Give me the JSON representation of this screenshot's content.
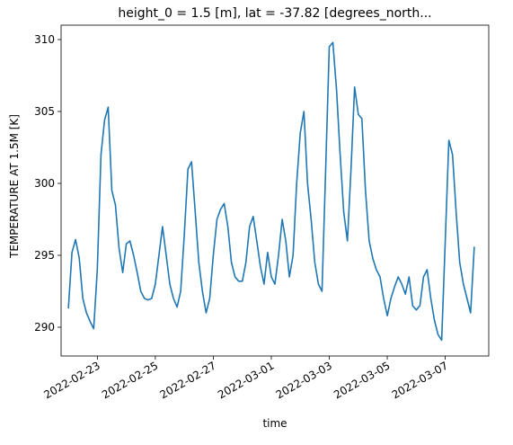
{
  "chart_data": {
    "type": "line",
    "title": "height_0 = 1.5 [m], lat = -37.82 [degrees_north...",
    "xlabel": "time",
    "ylabel": "TEMPERATURE AT 1.5M [K]",
    "xlim": [
      "2022-02-21T18:00",
      "2022-03-08T12:00"
    ],
    "ylim": [
      288,
      311
    ],
    "x_ticks": [
      "2022-02-23",
      "2022-02-25",
      "2022-02-27",
      "2022-03-01",
      "2022-03-03",
      "2022-03-05",
      "2022-03-07"
    ],
    "y_ticks": [
      290,
      295,
      300,
      305,
      310
    ],
    "line_color": "#1f77b4",
    "grid": false,
    "series": [
      {
        "x": [
          "2022-02-22T00:00",
          "2022-02-22T03:00",
          "2022-02-22T06:00",
          "2022-02-22T09:00",
          "2022-02-22T12:00",
          "2022-02-22T15:00",
          "2022-02-22T18:00",
          "2022-02-22T21:00",
          "2022-02-23T00:00",
          "2022-02-23T03:00",
          "2022-02-23T06:00",
          "2022-02-23T09:00",
          "2022-02-23T12:00",
          "2022-02-23T15:00",
          "2022-02-23T18:00",
          "2022-02-23T21:00",
          "2022-02-24T00:00",
          "2022-02-24T03:00",
          "2022-02-24T06:00",
          "2022-02-24T09:00",
          "2022-02-24T12:00",
          "2022-02-24T15:00",
          "2022-02-24T18:00",
          "2022-02-24T21:00",
          "2022-02-25T00:00",
          "2022-02-25T03:00",
          "2022-02-25T06:00",
          "2022-02-25T09:00",
          "2022-02-25T12:00",
          "2022-02-25T15:00",
          "2022-02-25T18:00",
          "2022-02-25T21:00",
          "2022-02-26T00:00",
          "2022-02-26T03:00",
          "2022-02-26T06:00",
          "2022-02-26T09:00",
          "2022-02-26T12:00",
          "2022-02-26T15:00",
          "2022-02-26T18:00",
          "2022-02-26T21:00",
          "2022-02-27T00:00",
          "2022-02-27T03:00",
          "2022-02-27T06:00",
          "2022-02-27T09:00",
          "2022-02-27T12:00",
          "2022-02-27T15:00",
          "2022-02-27T18:00",
          "2022-02-27T21:00",
          "2022-02-28T00:00",
          "2022-02-28T03:00",
          "2022-02-28T06:00",
          "2022-02-28T09:00",
          "2022-02-28T12:00",
          "2022-02-28T15:00",
          "2022-02-28T18:00",
          "2022-02-28T21:00",
          "2022-03-01T00:00",
          "2022-03-01T03:00",
          "2022-03-01T06:00",
          "2022-03-01T09:00",
          "2022-03-01T12:00",
          "2022-03-01T15:00",
          "2022-03-01T18:00",
          "2022-03-01T21:00",
          "2022-03-02T00:00",
          "2022-03-02T03:00",
          "2022-03-02T06:00",
          "2022-03-02T09:00",
          "2022-03-02T12:00",
          "2022-03-02T15:00",
          "2022-03-02T18:00",
          "2022-03-02T21:00",
          "2022-03-03T00:00",
          "2022-03-03T03:00",
          "2022-03-03T06:00",
          "2022-03-03T09:00",
          "2022-03-03T12:00",
          "2022-03-03T15:00",
          "2022-03-03T18:00",
          "2022-03-03T21:00",
          "2022-03-04T00:00",
          "2022-03-04T03:00",
          "2022-03-04T06:00",
          "2022-03-04T09:00",
          "2022-03-04T12:00",
          "2022-03-04T15:00",
          "2022-03-04T18:00",
          "2022-03-04T21:00",
          "2022-03-05T00:00",
          "2022-03-05T03:00",
          "2022-03-05T06:00",
          "2022-03-05T09:00",
          "2022-03-05T12:00",
          "2022-03-05T15:00",
          "2022-03-05T18:00",
          "2022-03-05T21:00",
          "2022-03-06T00:00",
          "2022-03-06T03:00",
          "2022-03-06T06:00",
          "2022-03-06T09:00",
          "2022-03-06T12:00",
          "2022-03-06T15:00",
          "2022-03-06T18:00",
          "2022-03-06T21:00",
          "2022-03-07T00:00",
          "2022-03-07T03:00",
          "2022-03-07T06:00",
          "2022-03-07T09:00",
          "2022-03-07T12:00",
          "2022-03-07T15:00",
          "2022-03-07T18:00",
          "2022-03-07T21:00",
          "2022-03-08T00:00"
        ],
        "values": [
          291.3,
          295.2,
          296.1,
          294.8,
          292.0,
          291.0,
          290.4,
          289.9,
          294.0,
          302.0,
          304.4,
          305.3,
          299.5,
          298.5,
          295.5,
          293.8,
          295.8,
          296.0,
          295.0,
          293.8,
          292.5,
          292.0,
          291.9,
          292.0,
          293.0,
          295.0,
          297.0,
          295.0,
          293.0,
          292.0,
          291.4,
          292.5,
          296.5,
          301.0,
          301.5,
          298.0,
          294.5,
          292.5,
          291.0,
          292.0,
          295.0,
          297.5,
          298.2,
          298.6,
          297.0,
          294.5,
          293.5,
          293.2,
          293.2,
          294.5,
          297.0,
          297.7,
          296.0,
          294.2,
          293.0,
          295.2,
          293.5,
          293.0,
          295.0,
          297.5,
          296.0,
          293.5,
          295.0,
          300.0,
          303.5,
          305.0,
          300.0,
          297.5,
          294.5,
          293.0,
          292.5,
          301.0,
          309.5,
          309.8,
          306.5,
          302.0,
          298.0,
          296.0,
          301.0,
          306.7,
          304.8,
          304.5,
          299.5,
          296.0,
          294.8,
          294.0,
          293.5,
          292.0,
          290.8,
          292.0,
          292.8,
          293.5,
          293.0,
          292.3,
          293.5,
          291.5,
          291.2,
          291.5,
          293.5,
          294.0,
          292.0,
          290.5,
          289.5,
          289.1,
          296.0,
          303.0,
          302.0,
          298.0,
          294.5,
          293.0,
          292.0,
          291.0,
          295.6
        ]
      }
    ]
  }
}
